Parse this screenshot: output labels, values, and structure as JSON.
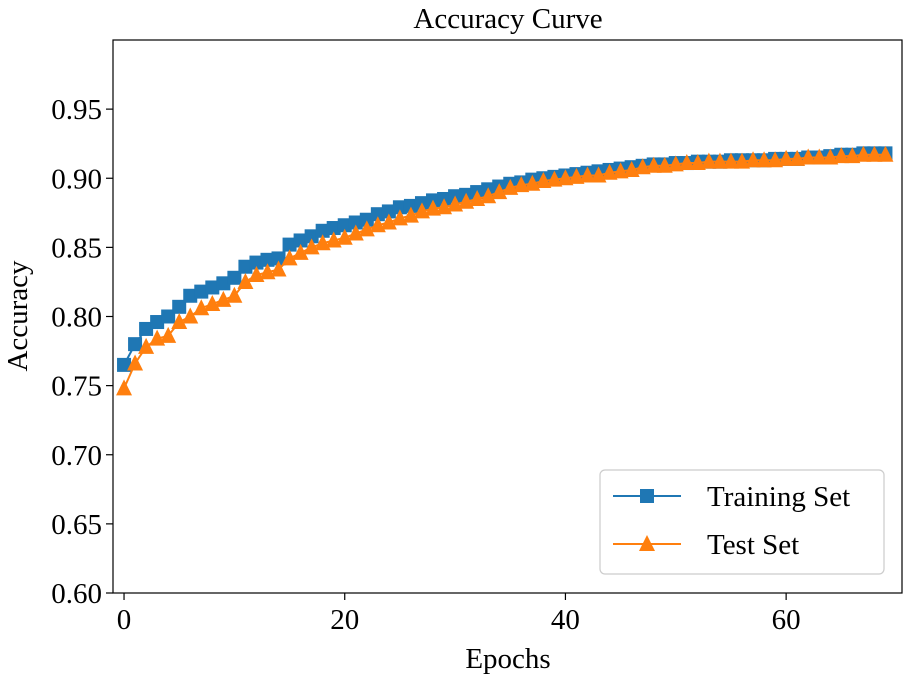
{
  "chart_data": {
    "type": "line",
    "title": "Accuracy Curve",
    "xlabel": "Epochs",
    "ylabel": "Accuracy",
    "xlim": [
      -1,
      70.5
    ],
    "ylim": [
      0.6,
      1.0
    ],
    "xticks": [
      0,
      20,
      40,
      60
    ],
    "yticks": [
      0.6,
      0.65,
      0.7,
      0.75,
      0.8,
      0.85,
      0.9,
      0.95
    ],
    "grid": false,
    "legend_position": "bottom-right",
    "x": [
      0,
      1,
      2,
      3,
      4,
      5,
      6,
      7,
      8,
      9,
      10,
      11,
      12,
      13,
      14,
      15,
      16,
      17,
      18,
      19,
      20,
      21,
      22,
      23,
      24,
      25,
      26,
      27,
      28,
      29,
      30,
      31,
      32,
      33,
      34,
      35,
      36,
      37,
      38,
      39,
      40,
      41,
      42,
      43,
      44,
      45,
      46,
      47,
      48,
      49,
      50,
      51,
      52,
      53,
      54,
      55,
      56,
      57,
      58,
      59,
      60,
      61,
      62,
      63,
      64,
      65,
      66,
      67,
      68,
      69
    ],
    "series": [
      {
        "name": "Training Set",
        "color": "#1f77b4",
        "marker": "square",
        "values": [
          0.765,
          0.78,
          0.791,
          0.796,
          0.8,
          0.807,
          0.815,
          0.818,
          0.821,
          0.824,
          0.828,
          0.836,
          0.839,
          0.841,
          0.842,
          0.852,
          0.855,
          0.858,
          0.862,
          0.864,
          0.866,
          0.868,
          0.87,
          0.874,
          0.876,
          0.879,
          0.88,
          0.882,
          0.884,
          0.885,
          0.887,
          0.888,
          0.89,
          0.892,
          0.894,
          0.896,
          0.897,
          0.899,
          0.9,
          0.901,
          0.902,
          0.903,
          0.904,
          0.905,
          0.906,
          0.907,
          0.908,
          0.909,
          0.91,
          0.91,
          0.911,
          0.911,
          0.912,
          0.912,
          0.912,
          0.913,
          0.913,
          0.913,
          0.913,
          0.914,
          0.914,
          0.914,
          0.915,
          0.915,
          0.916,
          0.917,
          0.917,
          0.918,
          0.918,
          0.918
        ]
      },
      {
        "name": "Test Set",
        "color": "#ff7f0e",
        "marker": "triangle",
        "values": [
          0.748,
          0.766,
          0.778,
          0.784,
          0.786,
          0.796,
          0.8,
          0.806,
          0.809,
          0.812,
          0.815,
          0.825,
          0.83,
          0.832,
          0.834,
          0.842,
          0.846,
          0.85,
          0.853,
          0.855,
          0.857,
          0.86,
          0.863,
          0.866,
          0.868,
          0.871,
          0.873,
          0.876,
          0.878,
          0.879,
          0.881,
          0.883,
          0.885,
          0.887,
          0.89,
          0.893,
          0.895,
          0.896,
          0.898,
          0.899,
          0.9,
          0.901,
          0.902,
          0.902,
          0.904,
          0.905,
          0.906,
          0.908,
          0.909,
          0.909,
          0.91,
          0.911,
          0.911,
          0.912,
          0.912,
          0.912,
          0.912,
          0.913,
          0.913,
          0.913,
          0.914,
          0.914,
          0.915,
          0.915,
          0.915,
          0.916,
          0.916,
          0.917,
          0.917,
          0.917
        ]
      }
    ]
  }
}
